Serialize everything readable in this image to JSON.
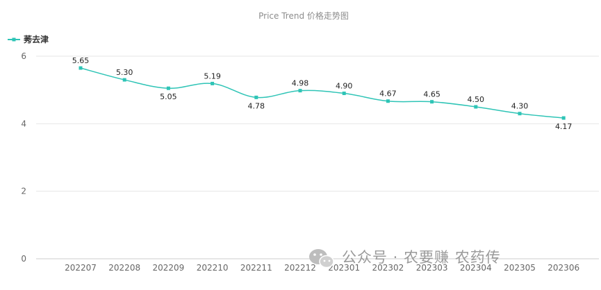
{
  "chart_data": {
    "type": "line",
    "title": "Price Trend 价格走势图",
    "categories": [
      "202207",
      "202208",
      "202209",
      "202210",
      "202211",
      "202212",
      "202301",
      "202302",
      "202303",
      "202304",
      "202305",
      "202306"
    ],
    "series": [
      {
        "name": "莠去津",
        "color": "#2ec4b6",
        "values": [
          5.65,
          5.3,
          5.05,
          5.19,
          4.78,
          4.98,
          4.9,
          4.67,
          4.65,
          4.5,
          4.3,
          4.17
        ]
      }
    ],
    "y_ticks": [
      0,
      2,
      4,
      6
    ],
    "ylim": [
      0,
      6
    ],
    "xlabel": "",
    "ylabel": "",
    "grid": true,
    "legend_position": "top-left"
  },
  "watermark": {
    "text": "公众号 · 农要赚 农药传",
    "icon": "wechat-icon"
  }
}
